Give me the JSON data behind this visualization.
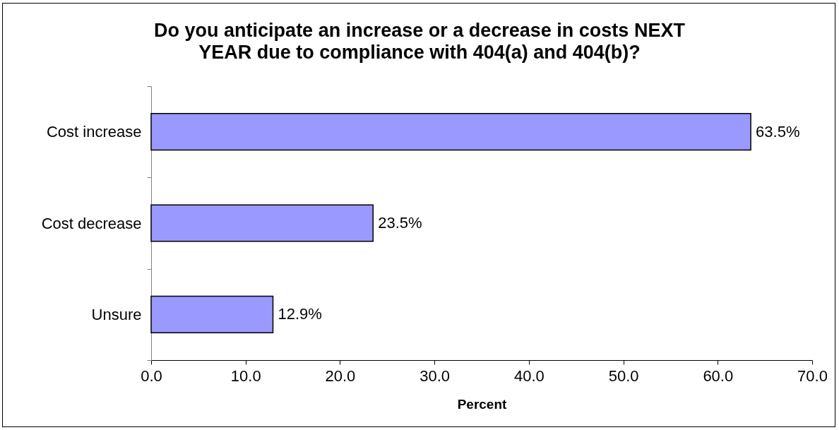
{
  "chart_data": {
    "type": "bar",
    "orientation": "horizontal",
    "title": "Do you anticipate an increase or a decrease in costs NEXT YEAR due to compliance with 404(a) and 404(b)?",
    "xlabel": "Percent",
    "categories": [
      "Cost increase",
      "Cost decrease",
      "Unsure"
    ],
    "values": [
      63.5,
      23.5,
      12.9
    ],
    "value_labels": [
      "63.5%",
      "23.5%",
      "12.9%"
    ],
    "color": "#9999ff",
    "xlim": [
      0,
      70
    ],
    "xticks": [
      {
        "value": 0,
        "label": "0.0"
      },
      {
        "value": 10,
        "label": "10.0"
      },
      {
        "value": 20,
        "label": "20.0"
      },
      {
        "value": 30,
        "label": "30.0"
      },
      {
        "value": 40,
        "label": "40.0"
      },
      {
        "value": 50,
        "label": "50.0"
      },
      {
        "value": 60,
        "label": "60.0"
      },
      {
        "value": 70,
        "label": "70.0"
      }
    ]
  }
}
